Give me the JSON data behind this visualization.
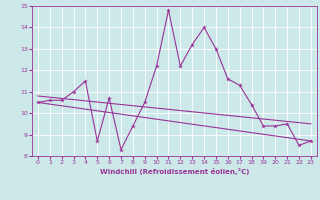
{
  "title": "",
  "xlabel": "Windchill (Refroidissement éolien,°C)",
  "ylabel": "",
  "xlim": [
    -0.5,
    23.5
  ],
  "ylim": [
    8,
    15
  ],
  "yticks": [
    8,
    9,
    10,
    11,
    12,
    13,
    14,
    15
  ],
  "xticks": [
    0,
    1,
    2,
    3,
    4,
    5,
    6,
    7,
    8,
    9,
    10,
    11,
    12,
    13,
    14,
    15,
    16,
    17,
    18,
    19,
    20,
    21,
    22,
    23
  ],
  "bg_color": "#cce8e8",
  "grid_color": "#ffffff",
  "line_color": "#993399",
  "series1_x": [
    0,
    1,
    2,
    3,
    4,
    5,
    6,
    7,
    8,
    9,
    10,
    11,
    12,
    13,
    14,
    15,
    16,
    17,
    18,
    19,
    20,
    21,
    22,
    23
  ],
  "series1_y": [
    10.5,
    10.6,
    10.6,
    11.0,
    11.5,
    8.7,
    10.7,
    8.3,
    9.4,
    10.5,
    12.2,
    14.8,
    12.2,
    13.2,
    14.0,
    13.0,
    11.6,
    11.3,
    10.4,
    9.4,
    9.4,
    9.5,
    8.5,
    8.7
  ],
  "trend1_x": [
    0,
    23
  ],
  "trend1_y": [
    10.8,
    9.5
  ],
  "trend2_x": [
    0,
    23
  ],
  "trend2_y": [
    10.5,
    8.7
  ]
}
